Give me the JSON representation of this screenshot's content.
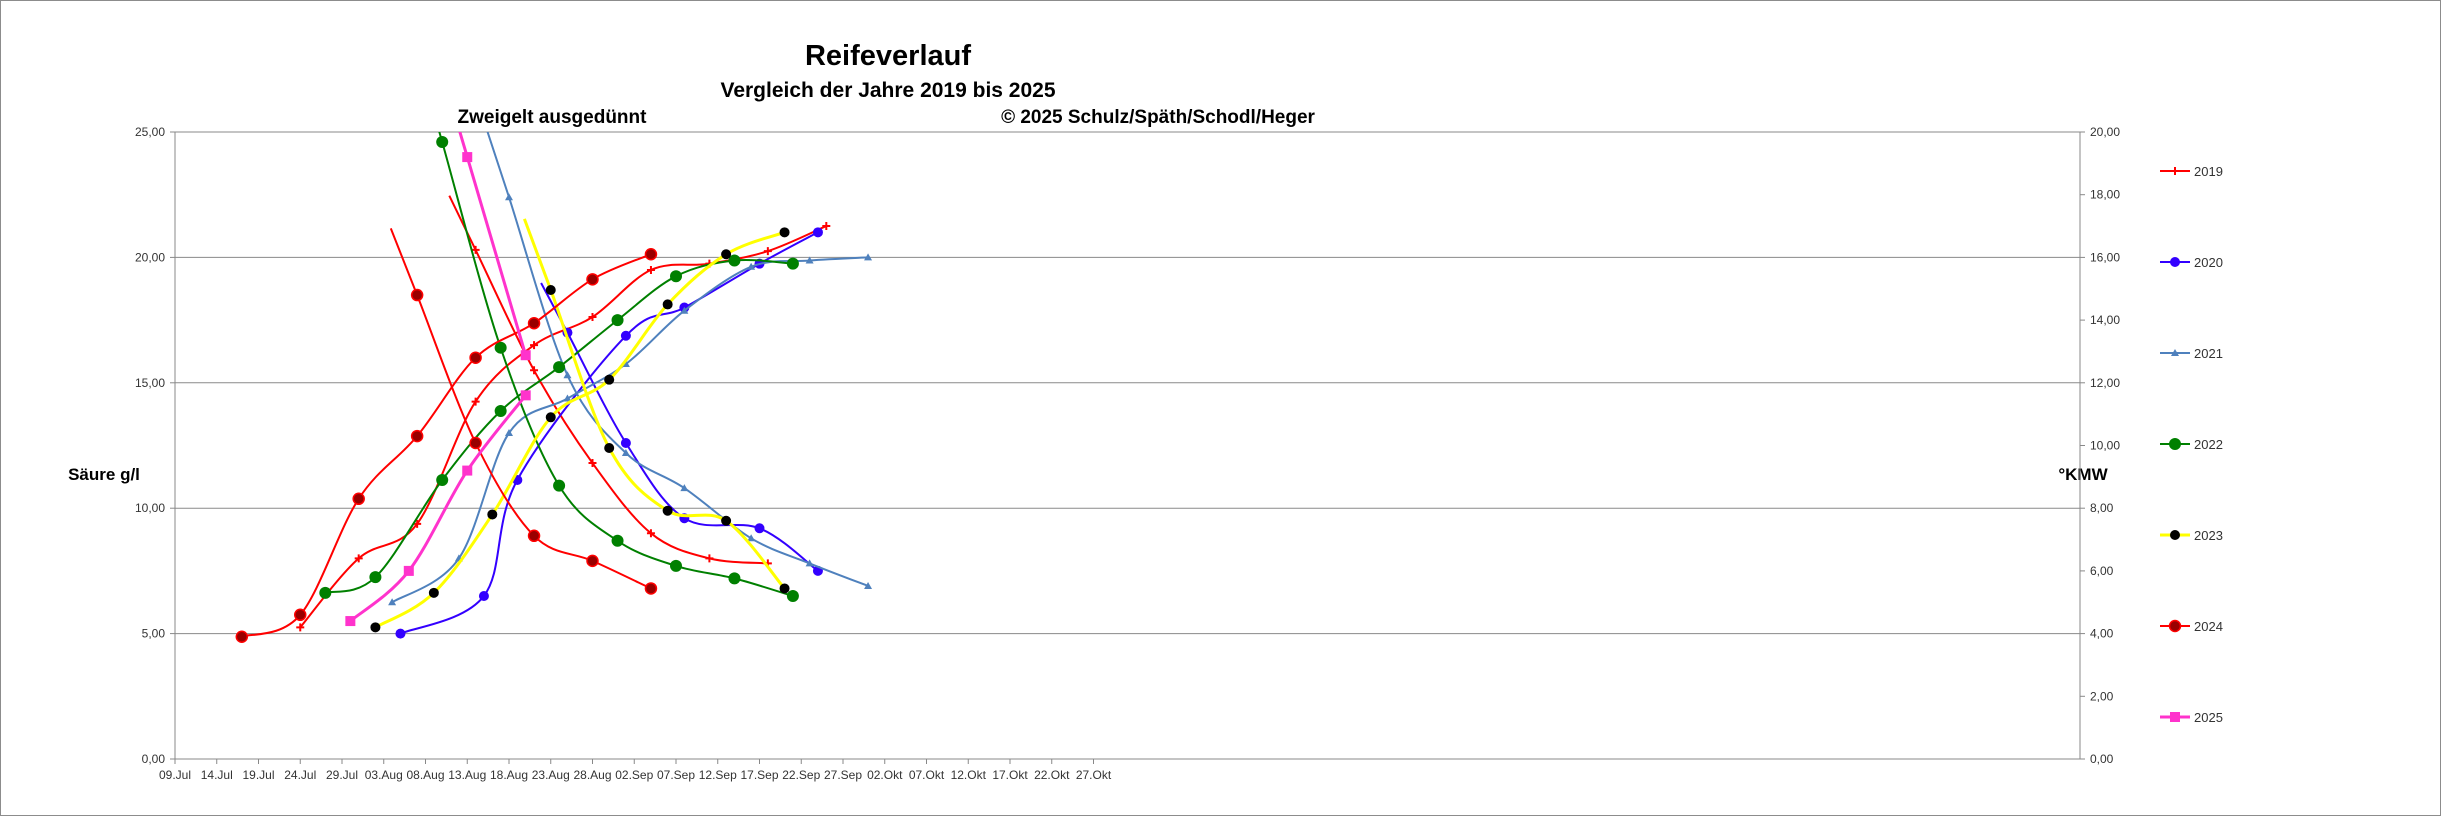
{
  "chart_data": {
    "type": "line",
    "title": "Reifeverlauf",
    "subtitle": "Vergleich der Jahre 2019 bis  2025",
    "annotation_left": "Zweigelt ausgedünnt",
    "annotation_right": "© 2025 Schulz/Späth/Schodl/Heger",
    "ylabel_left": "Säure g/l",
    "ylabel_right": "°KMW",
    "ylim_left": [
      0,
      25
    ],
    "ylim_right": [
      0,
      20
    ],
    "grid": "horizontal major gridlines",
    "legend_position": "right",
    "x_ticks": [
      "09.Jul",
      "14.Jul",
      "19.Jul",
      "24.Jul",
      "29.Jul",
      "03.Aug",
      "08.Aug",
      "13.Aug",
      "18.Aug",
      "23.Aug",
      "28.Aug",
      "02.Sep",
      "07.Sep",
      "12.Sep",
      "17.Sep",
      "22.Sep",
      "27.Sep",
      "02.Okt",
      "07.Okt",
      "12.Okt",
      "17.Okt",
      "22.Okt",
      "27.Okt"
    ],
    "y_left_ticks": [
      "0,00",
      "5,00",
      "10,00",
      "15,00",
      "20,00",
      "25,00"
    ],
    "y_right_ticks": [
      "0,00",
      "2,00",
      "4,00",
      "6,00",
      "8,00",
      "10,00",
      "12,00",
      "14,00",
      "16,00",
      "18,00",
      "20,00"
    ],
    "series": [
      {
        "name": "2019",
        "color": "#ff0000",
        "marker": "plus",
        "width": 2,
        "kmw": [
          [
            "24.07",
            4.2
          ],
          [
            "31.07",
            6.4
          ],
          [
            "07.08",
            7.5
          ],
          [
            "14.08",
            11.4
          ],
          [
            "21.08",
            13.2
          ],
          [
            "28.08",
            14.1
          ],
          [
            "04.09",
            15.6
          ],
          [
            "11.09",
            15.8
          ],
          [
            "18.09",
            16.2
          ],
          [
            "25.09",
            17.0
          ]
        ],
        "acid": [
          [
            "14.08",
            20.3
          ],
          [
            "21.08",
            15.5
          ],
          [
            "28.08",
            11.8
          ],
          [
            "04.09",
            9.0
          ],
          [
            "11.09",
            8.0
          ],
          [
            "18.09",
            7.8
          ]
        ]
      },
      {
        "name": "2020",
        "color": "#3300ff",
        "marker": "circle-small",
        "width": 2,
        "kmw": [
          [
            "05.08",
            4.0
          ],
          [
            "15.08",
            5.2
          ],
          [
            "19.08",
            8.9
          ],
          [
            "01.09",
            13.5
          ],
          [
            "08.09",
            14.4
          ],
          [
            "17.09",
            15.8
          ],
          [
            "24.09",
            16.8
          ]
        ],
        "acid": [
          [
            "25.08",
            17.0
          ],
          [
            "01.09",
            12.6
          ],
          [
            "08.09",
            9.6
          ],
          [
            "17.09",
            9.2
          ],
          [
            "24.09",
            7.5
          ]
        ]
      },
      {
        "name": "2021",
        "color": "#4f81bd",
        "marker": "triangle",
        "width": 2,
        "kmw": [
          [
            "04.08",
            5.0
          ],
          [
            "12.08",
            6.4
          ],
          [
            "18.08",
            10.4
          ],
          [
            "25.08",
            11.5
          ],
          [
            "01.09",
            12.6
          ],
          [
            "08.09",
            14.3
          ],
          [
            "16.09",
            15.7
          ],
          [
            "23.09",
            15.9
          ],
          [
            "30.09",
            16.0
          ]
        ],
        "acid": [
          [
            "18.08",
            22.4
          ],
          [
            "25.08",
            15.3
          ],
          [
            "01.09",
            12.2
          ],
          [
            "08.09",
            10.8
          ],
          [
            "16.09",
            8.8
          ],
          [
            "23.09",
            7.8
          ],
          [
            "30.09",
            6.9
          ]
        ]
      },
      {
        "name": "2022",
        "color": "#008000",
        "marker": "circle",
        "width": 2,
        "kmw": [
          [
            "27.07",
            5.3
          ],
          [
            "02.08",
            5.8
          ],
          [
            "10.08",
            8.9
          ],
          [
            "17.08",
            11.1
          ],
          [
            "24.08",
            12.5
          ],
          [
            "31.08",
            14.0
          ],
          [
            "07.09",
            15.4
          ],
          [
            "14.09",
            15.9
          ],
          [
            "21.09",
            15.8
          ]
        ],
        "acid": [
          [
            "10.08",
            24.6
          ],
          [
            "17.08",
            16.4
          ],
          [
            "24.08",
            10.9
          ],
          [
            "31.08",
            8.7
          ],
          [
            "07.09",
            7.7
          ],
          [
            "14.09",
            7.2
          ],
          [
            "21.09",
            6.5
          ]
        ]
      },
      {
        "name": "2023",
        "color": "#ffff00",
        "marker": "dot-black",
        "width": 3,
        "kmw": [
          [
            "02.08",
            4.2
          ],
          [
            "09.08",
            5.3
          ],
          [
            "16.08",
            7.8
          ],
          [
            "23.08",
            10.9
          ],
          [
            "30.08",
            12.1
          ],
          [
            "06.09",
            14.5
          ],
          [
            "13.09",
            16.1
          ],
          [
            "20.09",
            16.8
          ]
        ],
        "acid": [
          [
            "23.08",
            18.7
          ],
          [
            "30.08",
            12.4
          ],
          [
            "06.09",
            9.9
          ],
          [
            "13.09",
            9.5
          ],
          [
            "20.09",
            6.8
          ]
        ]
      },
      {
        "name": "2024",
        "color": "#ff0000",
        "marker": "circle-darkred",
        "width": 2,
        "kmw": [
          [
            "17.07",
            3.9
          ],
          [
            "24.07",
            4.6
          ],
          [
            "31.07",
            8.3
          ],
          [
            "07.08",
            10.3
          ],
          [
            "14.08",
            12.8
          ],
          [
            "21.08",
            13.9
          ],
          [
            "28.08",
            15.3
          ],
          [
            "04.09",
            16.1
          ]
        ],
        "acid": [
          [
            "07.08",
            18.5
          ],
          [
            "14.08",
            12.6
          ],
          [
            "21.08",
            8.9
          ],
          [
            "28.08",
            7.9
          ],
          [
            "04.09",
            6.8
          ]
        ]
      },
      {
        "name": "2025",
        "color": "#ff33cc",
        "marker": "square",
        "width": 3,
        "kmw": [
          [
            "30.07",
            4.4
          ],
          [
            "06.08",
            6.0
          ],
          [
            "13.08",
            9.2
          ],
          [
            "20.08",
            11.6
          ]
        ],
        "acid": [
          [
            "13.08",
            24.0
          ],
          [
            "20.08",
            16.1
          ]
        ]
      }
    ]
  }
}
